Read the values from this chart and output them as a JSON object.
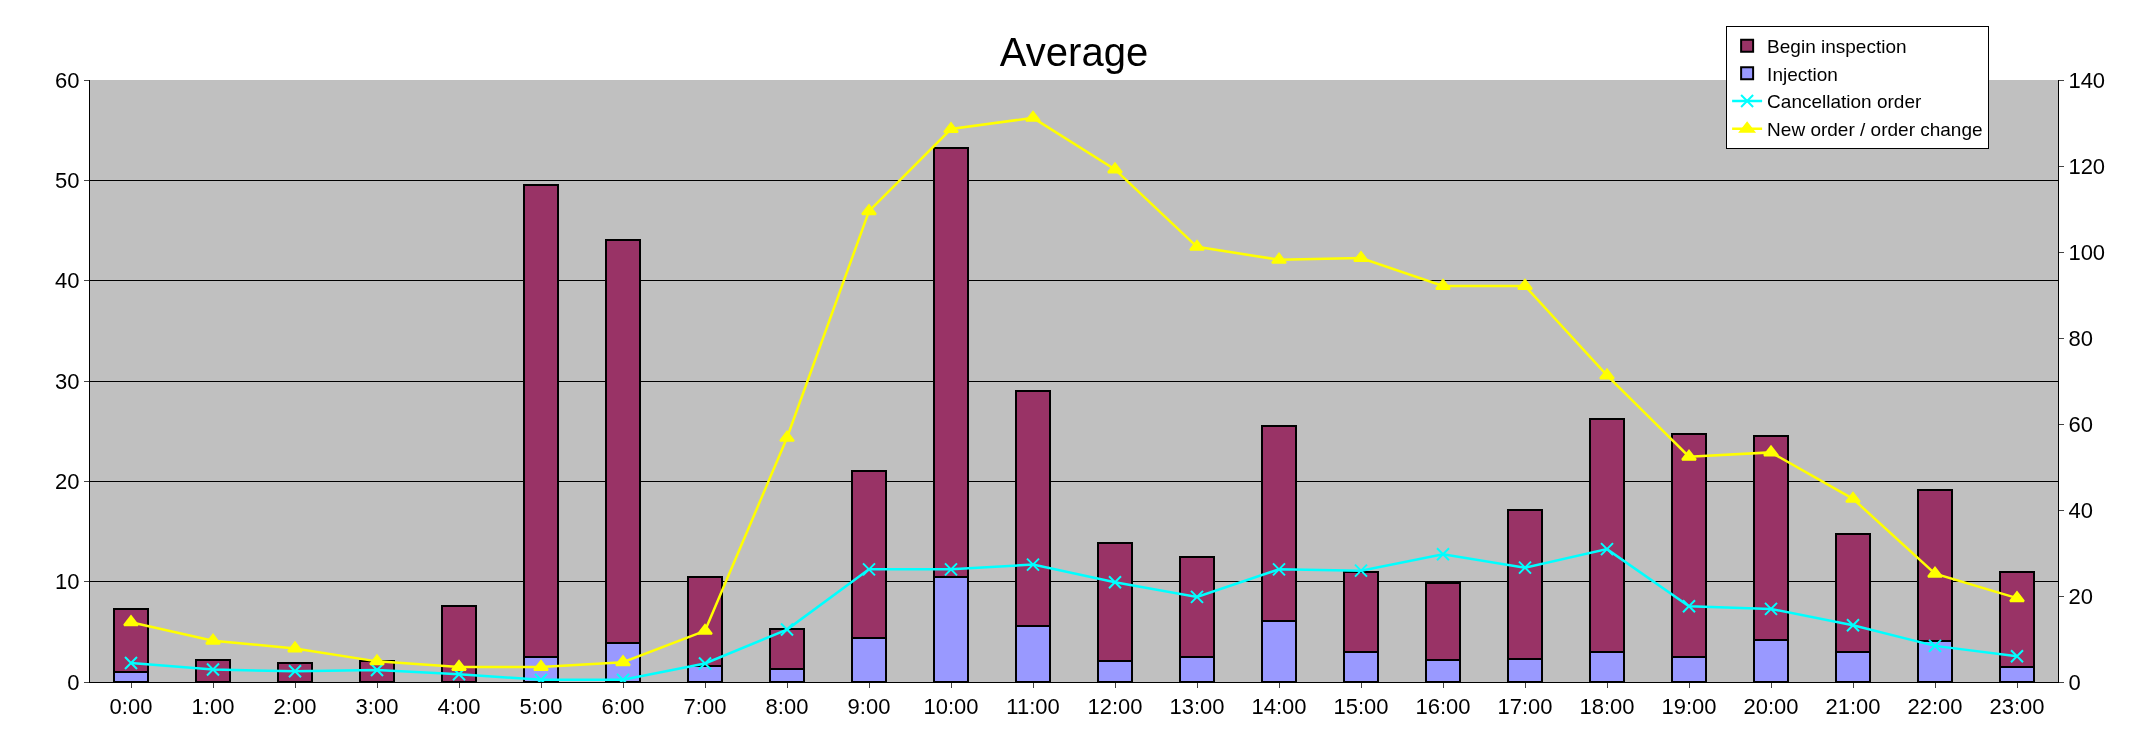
{
  "chart_data": {
    "type": "bar",
    "title": "Average",
    "stacked": true,
    "categories": [
      "0:00",
      "1:00",
      "2:00",
      "3:00",
      "4:00",
      "5:00",
      "6:00",
      "7:00",
      "8:00",
      "9:00",
      "10:00",
      "11:00",
      "12:00",
      "13:00",
      "14:00",
      "15:00",
      "16:00",
      "17:00",
      "18:00",
      "19:00",
      "20:00",
      "21:00",
      "22:00",
      "23:00"
    ],
    "series": [
      {
        "name": "Injection",
        "color": "#9999ff",
        "values": [
          1.0,
          null,
          null,
          null,
          null,
          2.5,
          3.9,
          1.6,
          1.3,
          4.4,
          10.5,
          5.6,
          2.1,
          2.5,
          6.1,
          3.0,
          2.2,
          2.3,
          3.0,
          2.5,
          4.2,
          3.0,
          4.1,
          1.5
        ]
      },
      {
        "name": "Begin inspection",
        "color": "#993366",
        "values": [
          6.3,
          2.2,
          1.9,
          2.1,
          7.6,
          47.0,
          40.2,
          8.9,
          4.0,
          16.6,
          42.7,
          23.4,
          11.8,
          10.0,
          19.4,
          8.0,
          7.7,
          14.8,
          23.2,
          22.2,
          20.3,
          11.8,
          15.0,
          9.5
        ]
      },
      {
        "name": "Cancellation order",
        "type": "line",
        "axis": "y2",
        "marker": "cross",
        "color": "#00ffff",
        "values": [
          4.4,
          2.9,
          2.5,
          2.8,
          1.8,
          0.5,
          0.5,
          4.3,
          12.2,
          26.2,
          26.2,
          27.3,
          23.2,
          19.8,
          26.2,
          25.9,
          29.7,
          26.6,
          30.9,
          17.6,
          17.0,
          13.2,
          8.4,
          6.0
        ]
      },
      {
        "name": "New order / order change",
        "type": "line",
        "axis": "y2",
        "marker": "triangle",
        "color": "#ffff00",
        "values": [
          13.9,
          9.6,
          7.8,
          4.8,
          3.5,
          3.5,
          4.6,
          11.9,
          56.8,
          109.5,
          128.6,
          131.2,
          119.2,
          101.2,
          98.2,
          98.6,
          92.1,
          92.1,
          71.3,
          52.4,
          53.4,
          42.6,
          25.2,
          19.5
        ]
      }
    ],
    "ylim": [
      0,
      60
    ],
    "yticks": [
      0,
      10,
      20,
      30,
      40,
      50,
      60
    ],
    "y2lim": [
      0,
      140
    ],
    "y2ticks": [
      0,
      20,
      40,
      60,
      80,
      100,
      120,
      140
    ],
    "grid": "y",
    "legend": "top right"
  }
}
